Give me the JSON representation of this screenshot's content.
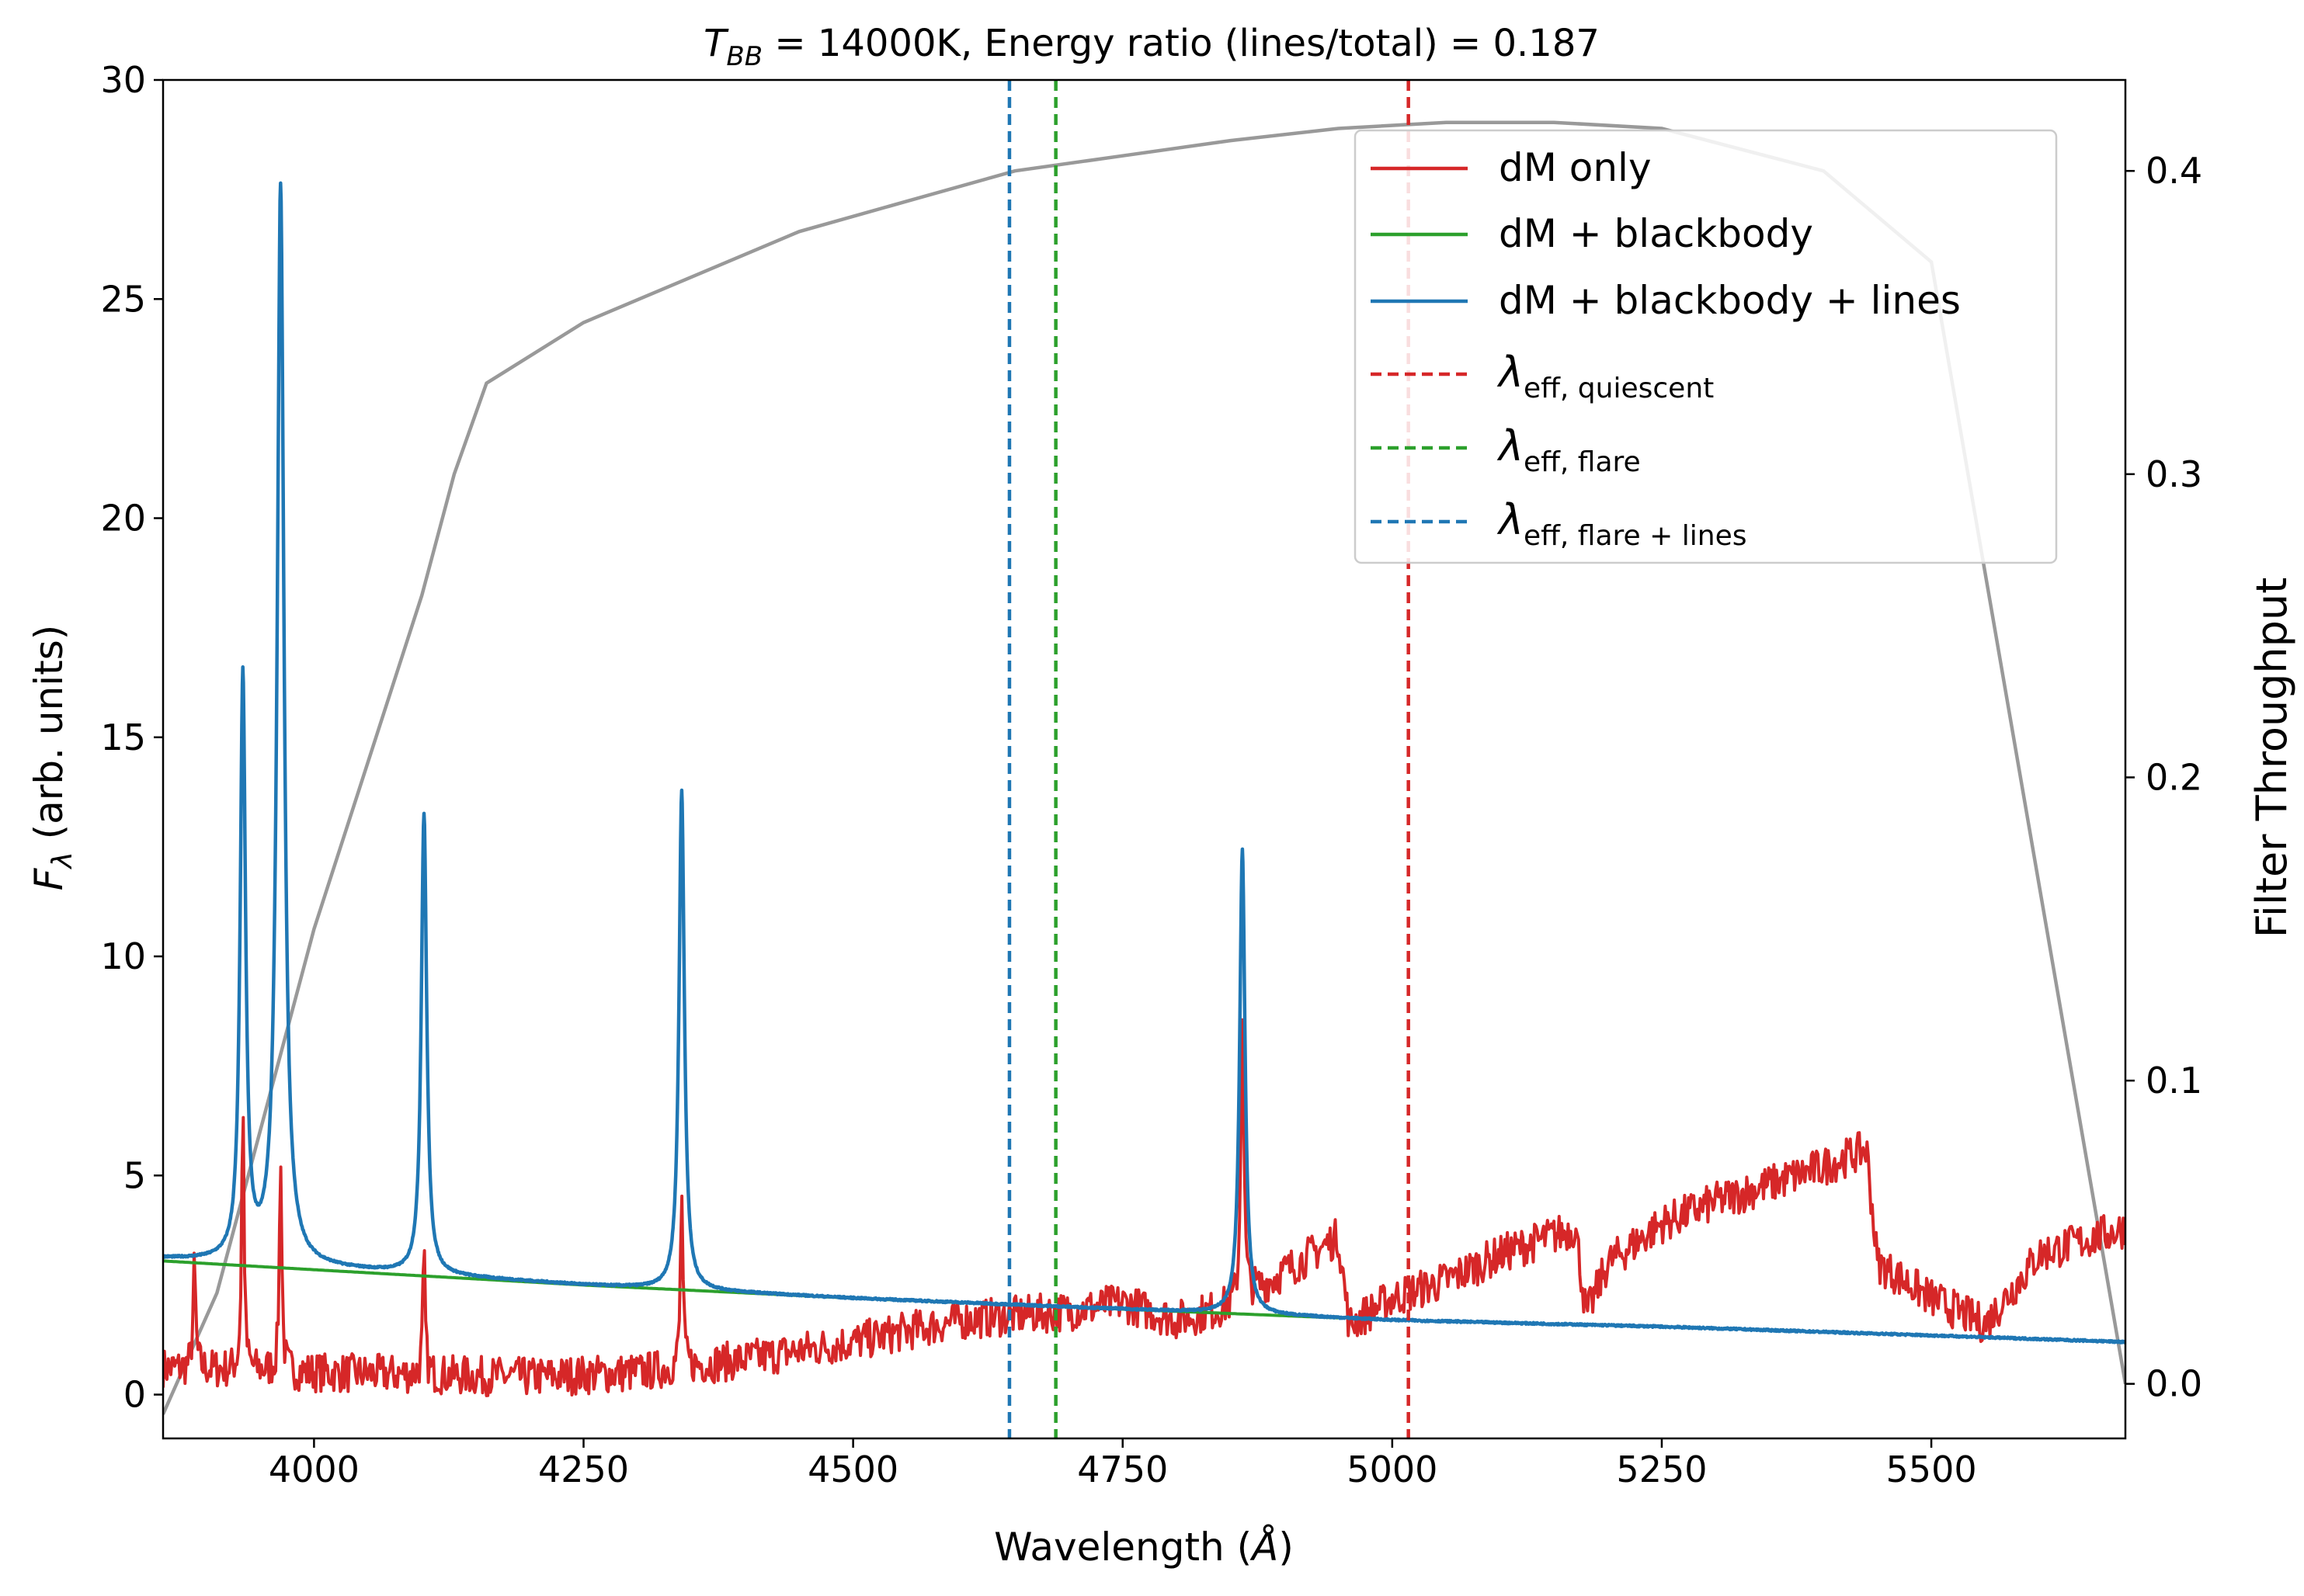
{
  "chart_data": {
    "type": "line",
    "title": "T_BB = 14000K, Energy ratio (lines/total) = 0.187",
    "title_parts": {
      "var": "T",
      "sub": "BB",
      "rest": " = 14000K, Energy ratio (lines/total) = 0.187"
    },
    "xlabel": "Wavelength (Å)",
    "xlabel_parts": {
      "pre": "Wavelength (",
      "sym": "Å",
      "post": ")"
    },
    "ylabel": "F_λ (arb. units)",
    "ylabel_parts": {
      "var": "F",
      "sub": "λ",
      "rest": " (arb. units)"
    },
    "y2label": "Filter Throughput",
    "xlim": [
      3860,
      5680
    ],
    "ylim": [
      -1,
      30
    ],
    "y2lim": [
      -0.018,
      0.43
    ],
    "xticks": [
      4000,
      4250,
      4500,
      4750,
      5000,
      5250,
      5500
    ],
    "yticks": [
      0,
      5,
      10,
      15,
      20,
      25,
      30
    ],
    "y2ticks": [
      0.0,
      0.1,
      0.2,
      0.3,
      0.4
    ],
    "y2ticklabels": [
      "0.0",
      "0.1",
      "0.2",
      "0.3",
      "0.4"
    ],
    "grid": false,
    "legend_position": "top-right",
    "colors": {
      "dm": "#d62728",
      "bb": "#2ca02c",
      "lines": "#1f77b4",
      "filter": "#999999"
    },
    "series": [
      {
        "key": "dm",
        "name": "dM only",
        "style": "solid",
        "color": "#d62728",
        "continuum": [
          [
            3860,
            0.6
          ],
          [
            4000,
            0.5
          ],
          [
            4100,
            0.45
          ],
          [
            4200,
            0.4
          ],
          [
            4300,
            0.5
          ],
          [
            4400,
            0.8
          ],
          [
            4500,
            1.2
          ],
          [
            4600,
            1.7
          ],
          [
            4700,
            1.9
          ],
          [
            4750,
            2.1
          ],
          [
            4800,
            1.7
          ],
          [
            4850,
            2.0
          ],
          [
            4900,
            2.8
          ],
          [
            4950,
            3.6
          ],
          [
            4960,
            1.6
          ],
          [
            5000,
            2.2
          ],
          [
            5050,
            2.6
          ],
          [
            5100,
            3.2
          ],
          [
            5170,
            3.8
          ],
          [
            5180,
            1.8
          ],
          [
            5200,
            3.0
          ],
          [
            5250,
            3.9
          ],
          [
            5300,
            4.4
          ],
          [
            5350,
            4.8
          ],
          [
            5400,
            5.2
          ],
          [
            5440,
            5.6
          ],
          [
            5450,
            3.0
          ],
          [
            5500,
            2.2
          ],
          [
            5550,
            1.6
          ],
          [
            5600,
            3.2
          ],
          [
            5680,
            3.8
          ]
        ],
        "peaks": [
          [
            3889,
            2.3,
            1.5
          ],
          [
            3934,
            6.2,
            1.3
          ],
          [
            3969,
            5.1,
            1.3
          ],
          [
            4102,
            2.7,
            1.3
          ],
          [
            4341,
            4.1,
            1.3
          ],
          [
            4861,
            6.8,
            1.6
          ]
        ]
      },
      {
        "key": "bb",
        "name": "dM + blackbody",
        "style": "solid",
        "color": "#2ca02c",
        "continuum": [
          [
            3860,
            3.05
          ],
          [
            4000,
            2.85
          ],
          [
            4250,
            2.5
          ],
          [
            4500,
            2.2
          ],
          [
            4750,
            1.95
          ],
          [
            4900,
            1.8
          ],
          [
            4950,
            1.75
          ]
        ]
      },
      {
        "key": "lines",
        "name": "dM + blackbody + lines",
        "style": "solid",
        "color": "#1f77b4",
        "continuum": [
          [
            3860,
            3.1
          ],
          [
            4000,
            2.9
          ],
          [
            4250,
            2.5
          ],
          [
            4500,
            2.2
          ],
          [
            4750,
            1.95
          ],
          [
            5000,
            1.7
          ],
          [
            5250,
            1.55
          ],
          [
            5500,
            1.35
          ],
          [
            5680,
            1.2
          ]
        ],
        "peaks": [
          [
            3934,
            13.3,
            3.0
          ],
          [
            3969,
            24.6,
            3.8
          ],
          [
            4102,
            10.5,
            3.0
          ],
          [
            4341,
            11.4,
            3.0
          ],
          [
            4861,
            10.6,
            3.0
          ]
        ]
      },
      {
        "key": "q",
        "name": "λ_eff, quiescent",
        "style": "dashed",
        "color": "#d62728",
        "x": 5015
      },
      {
        "key": "f",
        "name": "λ_eff, flare",
        "style": "dashed",
        "color": "#2ca02c",
        "x": 4688
      },
      {
        "key": "fl",
        "name": "λ_eff, flare + lines",
        "style": "dashed",
        "color": "#1f77b4",
        "x": 4645
      },
      {
        "key": "filter",
        "name": "Filter Throughput",
        "axis": "right",
        "color": "#999999",
        "points": [
          [
            3860,
            -0.01
          ],
          [
            3910,
            0.03
          ],
          [
            4000,
            0.15
          ],
          [
            4100,
            0.26
          ],
          [
            4130,
            0.3
          ],
          [
            4160,
            0.33
          ],
          [
            4250,
            0.35
          ],
          [
            4350,
            0.365
          ],
          [
            4450,
            0.38
          ],
          [
            4550,
            0.39
          ],
          [
            4650,
            0.4
          ],
          [
            4750,
            0.405
          ],
          [
            4850,
            0.41
          ],
          [
            4950,
            0.414
          ],
          [
            5050,
            0.416
          ],
          [
            5150,
            0.416
          ],
          [
            5250,
            0.414
          ],
          [
            5400,
            0.4
          ],
          [
            5500,
            0.37
          ],
          [
            5680,
            0.0
          ]
        ]
      }
    ],
    "legend": [
      {
        "key": "dm",
        "label": "dM only"
      },
      {
        "key": "bb",
        "label": "dM + blackbody"
      },
      {
        "key": "lines",
        "label": "dM + blackbody + lines"
      },
      {
        "key": "q",
        "label": "λ",
        "sub": "eff, quiescent"
      },
      {
        "key": "f",
        "label": "λ",
        "sub": "eff, flare"
      },
      {
        "key": "fl",
        "label": "λ",
        "sub": "eff, flare + lines"
      }
    ]
  }
}
